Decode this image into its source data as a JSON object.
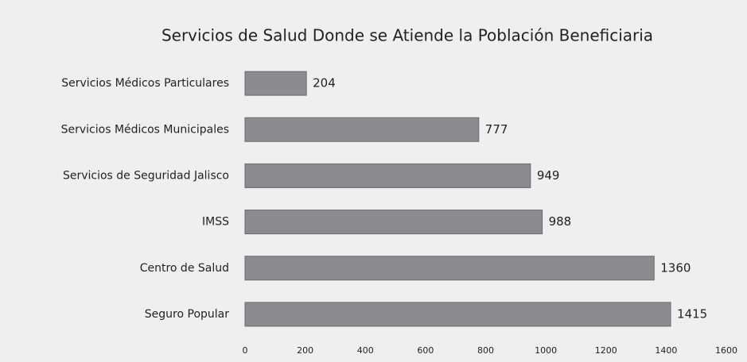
{
  "chart_data": {
    "type": "bar",
    "orientation": "horizontal",
    "title": "Servicios de Salud Donde se Atiende la Población Beneficiaria",
    "categories": [
      "Servicios Médicos Particulares",
      "Servicios Médicos Municipales",
      "Servicios de Seguridad Jalisco",
      "IMSS",
      "Centro de Salud",
      "Seguro Popular"
    ],
    "values": [
      204,
      777,
      949,
      988,
      1360,
      1415
    ],
    "color": "#8c8c90",
    "xlim": [
      0,
      1600
    ],
    "xticks": [
      0,
      200,
      400,
      600,
      800,
      1000,
      1200,
      1400,
      1600
    ]
  }
}
